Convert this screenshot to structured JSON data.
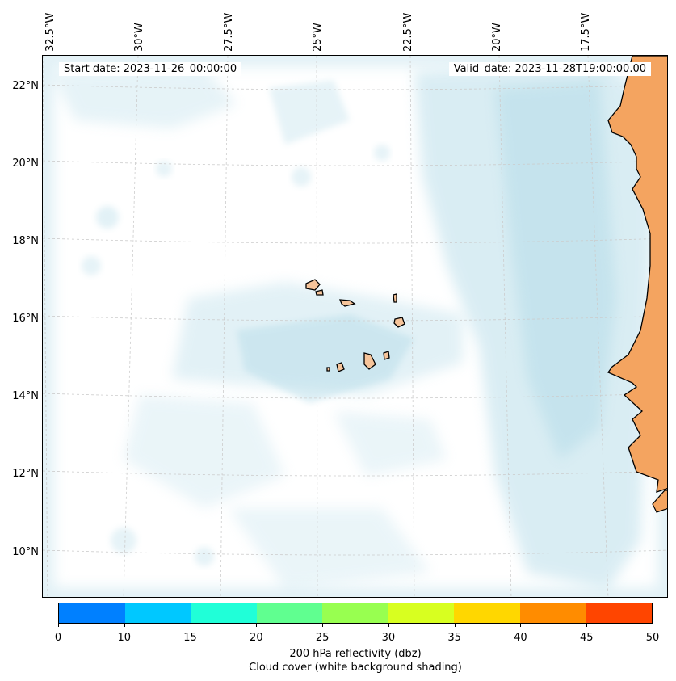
{
  "map": {
    "start_date": "Start date: 2023-11-26_00:00:00",
    "valid_date": "Valid_date: 2023-11-28T19:00:00.00",
    "lon_labels": [
      "32.5°W",
      "30°W",
      "27.5°W",
      "25°W",
      "22.5°W",
      "20°W",
      "17.5°W"
    ],
    "lat_labels": [
      "22°N",
      "20°N",
      "18°N",
      "16°N",
      "14°N",
      "12°N",
      "10°N"
    ],
    "colors": {
      "land": "#f4a460",
      "cloud": "#add8e6",
      "coast": "#000000",
      "grid": "#cccccc"
    }
  },
  "colorbar": {
    "ticks": [
      "0",
      "10",
      "15",
      "20",
      "25",
      "30",
      "35",
      "40",
      "45",
      "50"
    ],
    "colors": [
      "#0080ff",
      "#00c8ff",
      "#20ffd8",
      "#60ff90",
      "#98ff50",
      "#d8ff20",
      "#ffd700",
      "#ff8c00",
      "#ff4500"
    ],
    "label_line1": "200 hPa reflectivity (dbz)",
    "label_line2": "Cloud cover (white background shading)"
  }
}
